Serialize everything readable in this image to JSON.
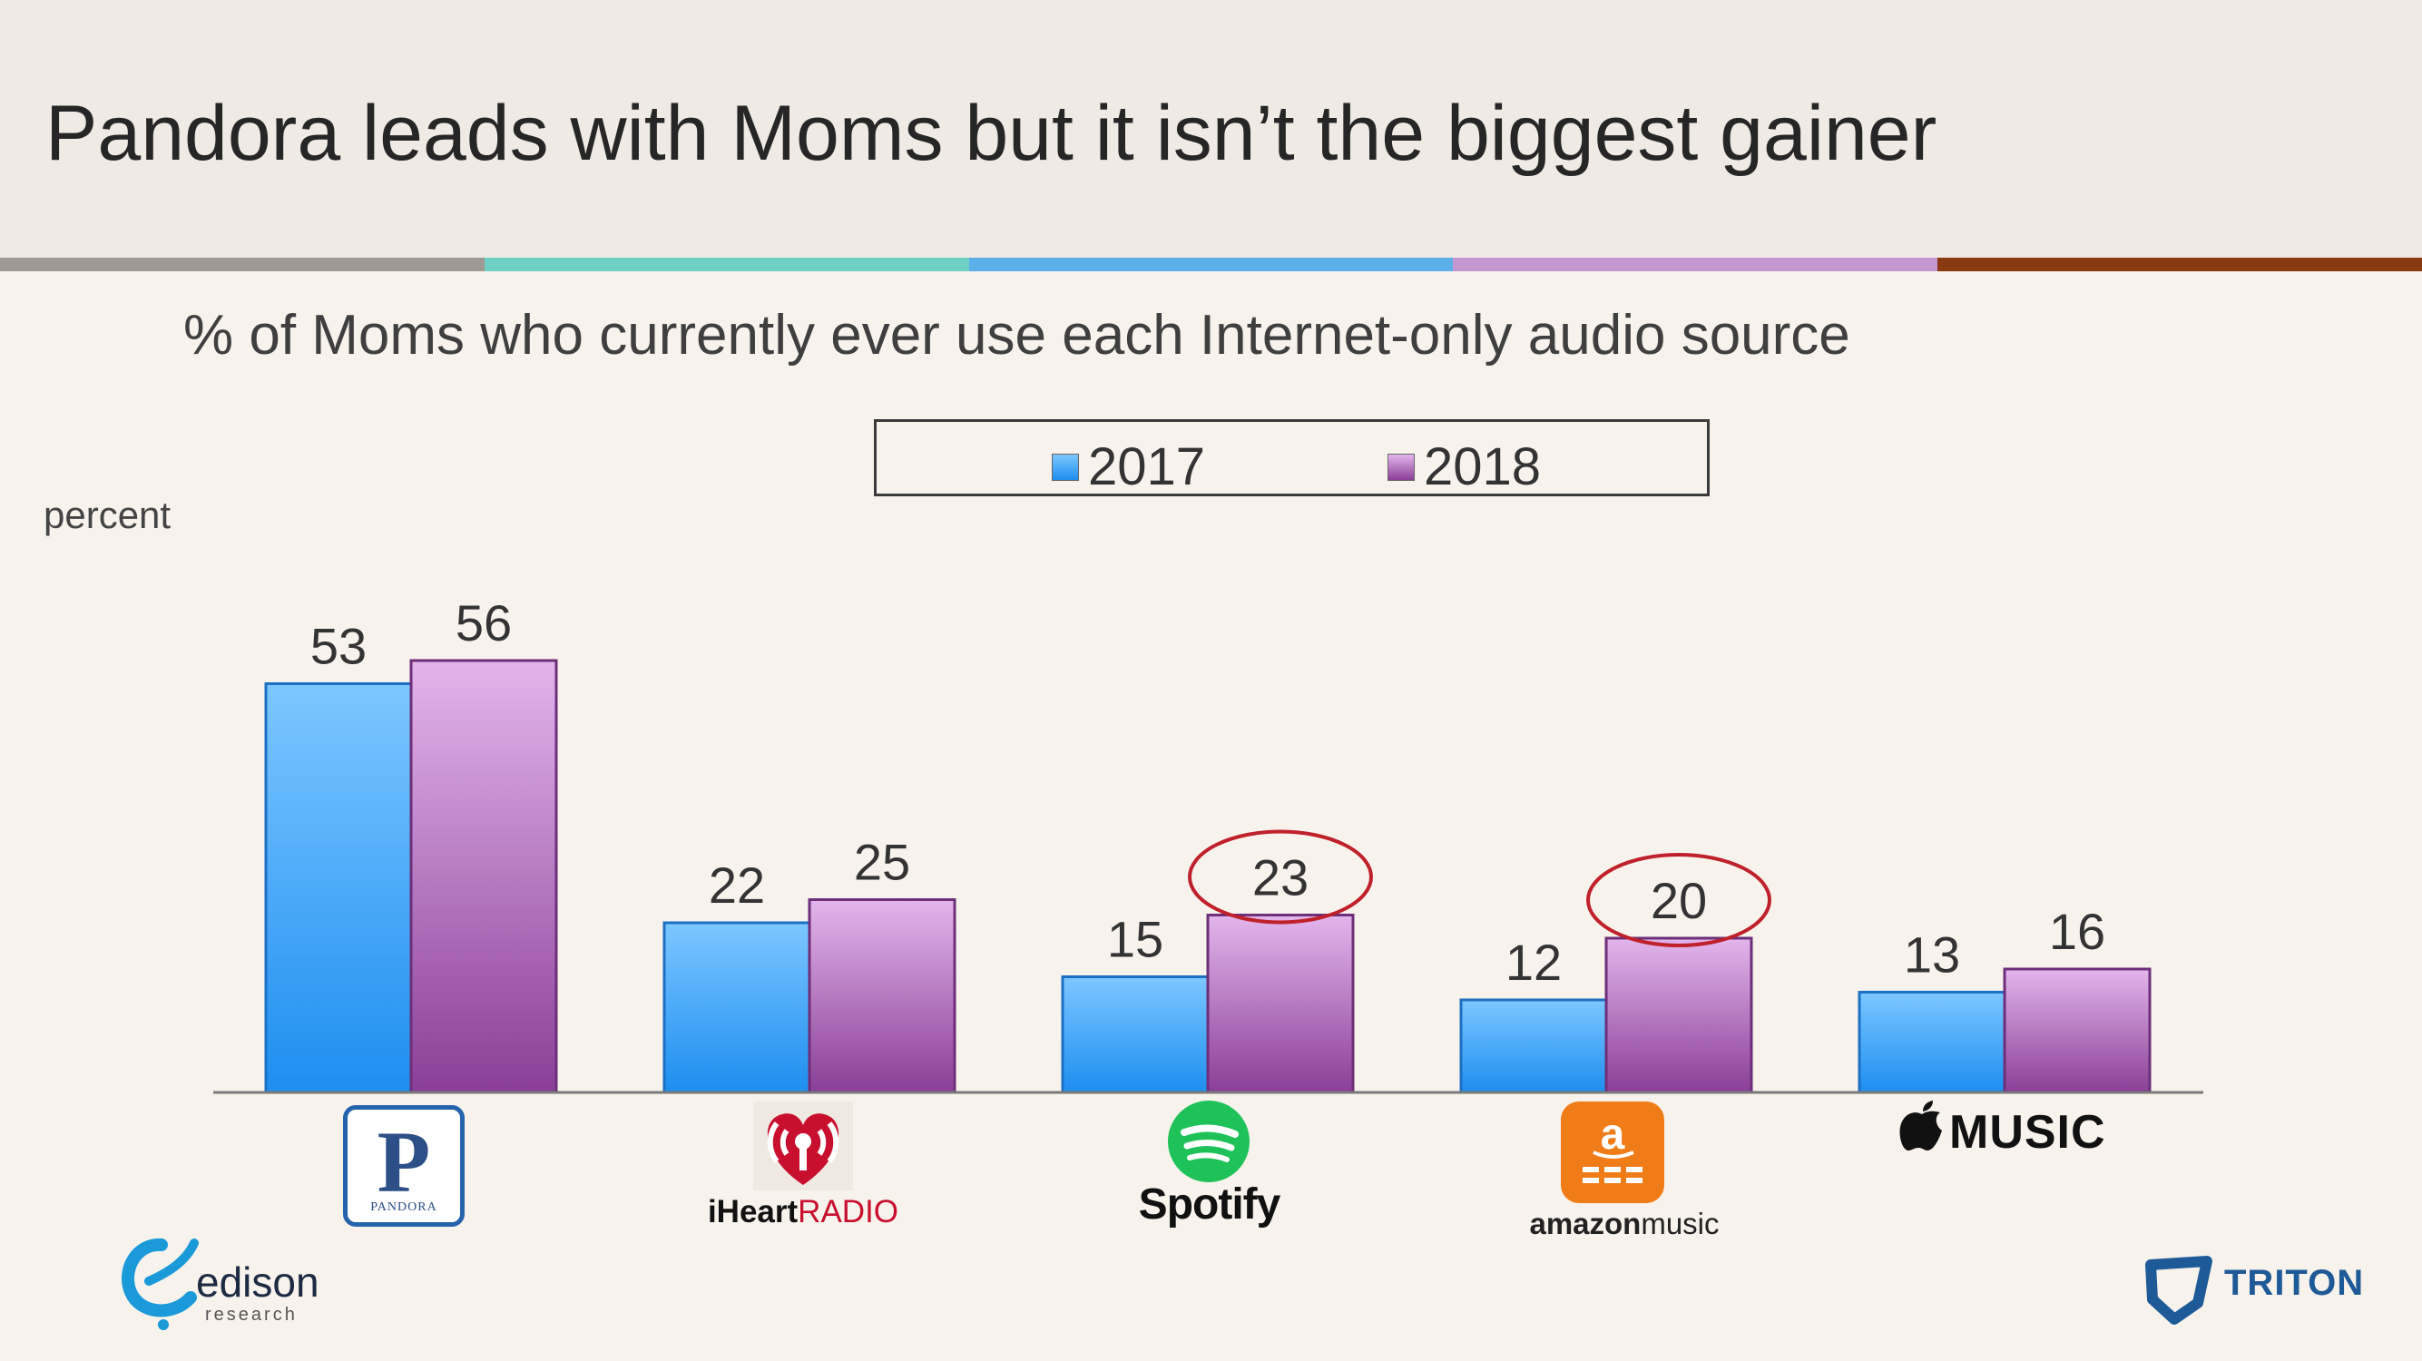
{
  "slide": {
    "title": "Pandora leads with Moms but it isn’t the biggest gainer",
    "stripe_colors": [
      "#a09a94",
      "#6fd0c8",
      "#5bb0ea",
      "#c597d0",
      "#8a3a10"
    ]
  },
  "chart_data": {
    "type": "bar",
    "title": "% of Moms who currently ever use each Internet-only audio source",
    "ylabel": "percent",
    "xlabel": "",
    "categories": [
      "Pandora",
      "iHeartRADIO",
      "Spotify",
      "amazon music",
      "Apple MUSIC"
    ],
    "series": [
      {
        "name": "2017",
        "values": [
          53,
          22,
          15,
          12,
          13
        ],
        "color_top": "#7cc7ff",
        "color_bottom": "#1d8ef0"
      },
      {
        "name": "2018",
        "values": [
          56,
          25,
          23,
          20,
          16
        ],
        "color_top": "#e3b5ec",
        "color_bottom": "#8a3f96"
      }
    ],
    "ylim": [
      0,
      60
    ],
    "legend_position": "top-center",
    "data_labels": true,
    "grid": false,
    "highlighted": [
      {
        "series": "2018",
        "category": "Spotify",
        "value": 23
      },
      {
        "series": "2018",
        "category": "amazon music",
        "value": 20
      }
    ],
    "highlight_color": "#c0202a"
  },
  "logos": {
    "pandora": {
      "mark": "P",
      "word": "PANDORA"
    },
    "iheart": {
      "bold": "iHeart",
      "light": "RADIO"
    },
    "spotify": {
      "word": "Spotify"
    },
    "amazon": {
      "tile_mark": "a",
      "bold": "amazon",
      "light": "music"
    },
    "applemusic": {
      "word": "MUSIC"
    },
    "edison": {
      "word": "edison",
      "sub": "research"
    },
    "triton": {
      "word": "TRITON"
    }
  }
}
